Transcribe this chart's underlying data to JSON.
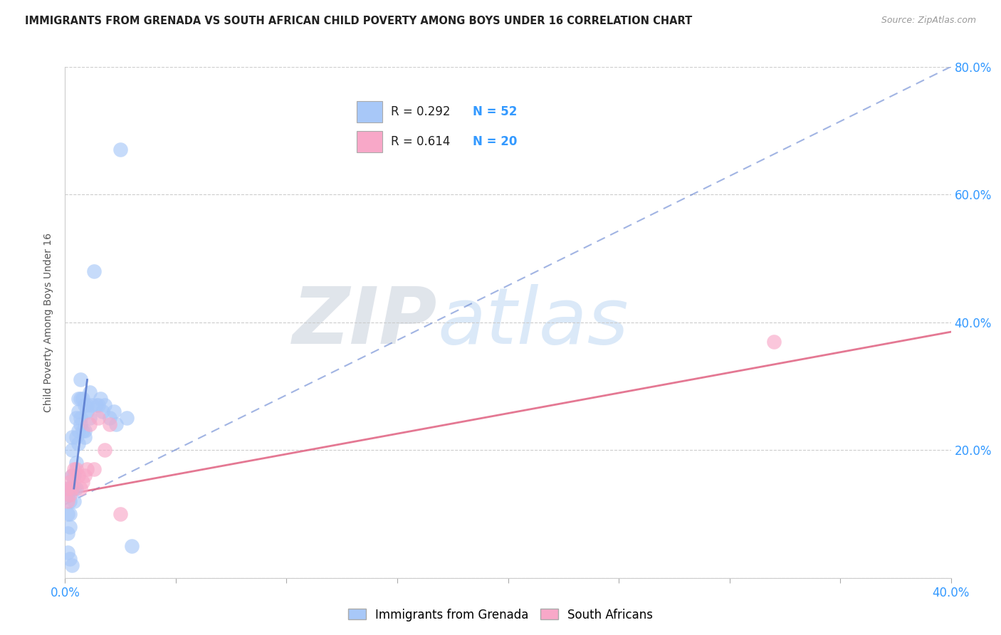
{
  "title": "IMMIGRANTS FROM GRENADA VS SOUTH AFRICAN CHILD POVERTY AMONG BOYS UNDER 16 CORRELATION CHART",
  "source": "Source: ZipAtlas.com",
  "ylabel": "Child Poverty Among Boys Under 16",
  "xlim": [
    0.0,
    0.4
  ],
  "ylim": [
    0.0,
    0.8
  ],
  "xticks": [
    0.0,
    0.05,
    0.1,
    0.15,
    0.2,
    0.25,
    0.3,
    0.35,
    0.4
  ],
  "yticks": [
    0.0,
    0.2,
    0.4,
    0.6,
    0.8
  ],
  "legend_label1": "Immigrants from Grenada",
  "legend_label2": "South Africans",
  "R1": "0.292",
  "N1": "52",
  "R2": "0.614",
  "N2": "20",
  "color1": "#a8c8f8",
  "color2": "#f8a8c8",
  "trend_color1": "#5577cc",
  "trend_color2": "#e06080",
  "blue_trend_x": [
    0.0,
    0.4
  ],
  "blue_trend_y": [
    0.115,
    0.8
  ],
  "pink_trend_x": [
    0.0,
    0.4
  ],
  "pink_trend_y": [
    0.13,
    0.385
  ],
  "blue_x": [
    0.001,
    0.001,
    0.001,
    0.001,
    0.002,
    0.002,
    0.002,
    0.002,
    0.003,
    0.003,
    0.003,
    0.003,
    0.004,
    0.004,
    0.004,
    0.005,
    0.005,
    0.005,
    0.005,
    0.006,
    0.006,
    0.006,
    0.006,
    0.007,
    0.007,
    0.007,
    0.007,
    0.008,
    0.008,
    0.009,
    0.009,
    0.009,
    0.01,
    0.01,
    0.011,
    0.011,
    0.012,
    0.013,
    0.014,
    0.015,
    0.016,
    0.017,
    0.018,
    0.02,
    0.022,
    0.023,
    0.025,
    0.028,
    0.03,
    0.001,
    0.002,
    0.003
  ],
  "blue_y": [
    0.13,
    0.14,
    0.1,
    0.07,
    0.12,
    0.14,
    0.1,
    0.08,
    0.16,
    0.2,
    0.22,
    0.14,
    0.16,
    0.14,
    0.12,
    0.22,
    0.25,
    0.18,
    0.14,
    0.26,
    0.28,
    0.23,
    0.21,
    0.31,
    0.28,
    0.25,
    0.24,
    0.28,
    0.23,
    0.27,
    0.23,
    0.22,
    0.27,
    0.26,
    0.25,
    0.29,
    0.27,
    0.48,
    0.27,
    0.27,
    0.28,
    0.26,
    0.27,
    0.25,
    0.26,
    0.24,
    0.67,
    0.25,
    0.05,
    0.04,
    0.03,
    0.02
  ],
  "pink_x": [
    0.001,
    0.001,
    0.002,
    0.002,
    0.003,
    0.003,
    0.004,
    0.005,
    0.006,
    0.007,
    0.008,
    0.009,
    0.01,
    0.011,
    0.013,
    0.015,
    0.018,
    0.02,
    0.025,
    0.32
  ],
  "pink_y": [
    0.14,
    0.12,
    0.15,
    0.13,
    0.16,
    0.14,
    0.17,
    0.17,
    0.16,
    0.14,
    0.15,
    0.16,
    0.17,
    0.24,
    0.17,
    0.25,
    0.2,
    0.24,
    0.1,
    0.37
  ]
}
